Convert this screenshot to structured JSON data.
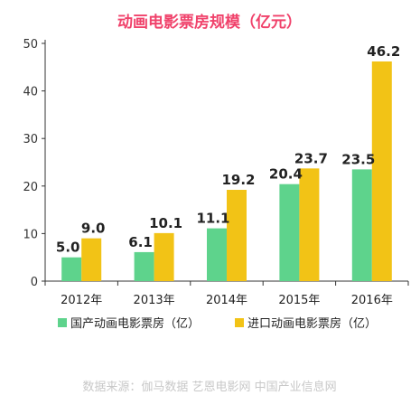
{
  "chart_data": {
    "type": "bar",
    "title": "动画电影票房规模（亿元）",
    "categories": [
      "2012年",
      "2013年",
      "2014年",
      "2015年",
      "2016年"
    ],
    "series": [
      {
        "name": "国产动画电影票房（亿）",
        "values": [
          5.0,
          6.1,
          11.1,
          20.4,
          23.5
        ],
        "color": "#5ed38c"
      },
      {
        "name": "进口动画电影票房（亿）",
        "values": [
          9.0,
          10.1,
          19.2,
          23.7,
          46.2
        ],
        "color": "#f2c316"
      }
    ],
    "data_labels": [
      [
        "5.0",
        "6.1",
        "11.1",
        "20.4",
        "23.5"
      ],
      [
        "9.0",
        "10.1",
        "19.2",
        "23.7",
        "46.2"
      ]
    ],
    "y_ticks": [
      "0",
      "10",
      "20",
      "30",
      "40",
      "50"
    ],
    "ylim": [
      0,
      50
    ],
    "grid": false,
    "legend_position": "bottom",
    "title_color": "#f0426b"
  },
  "source": "数据来源：伽马数据  艺恩电影网  中国产业信息网"
}
